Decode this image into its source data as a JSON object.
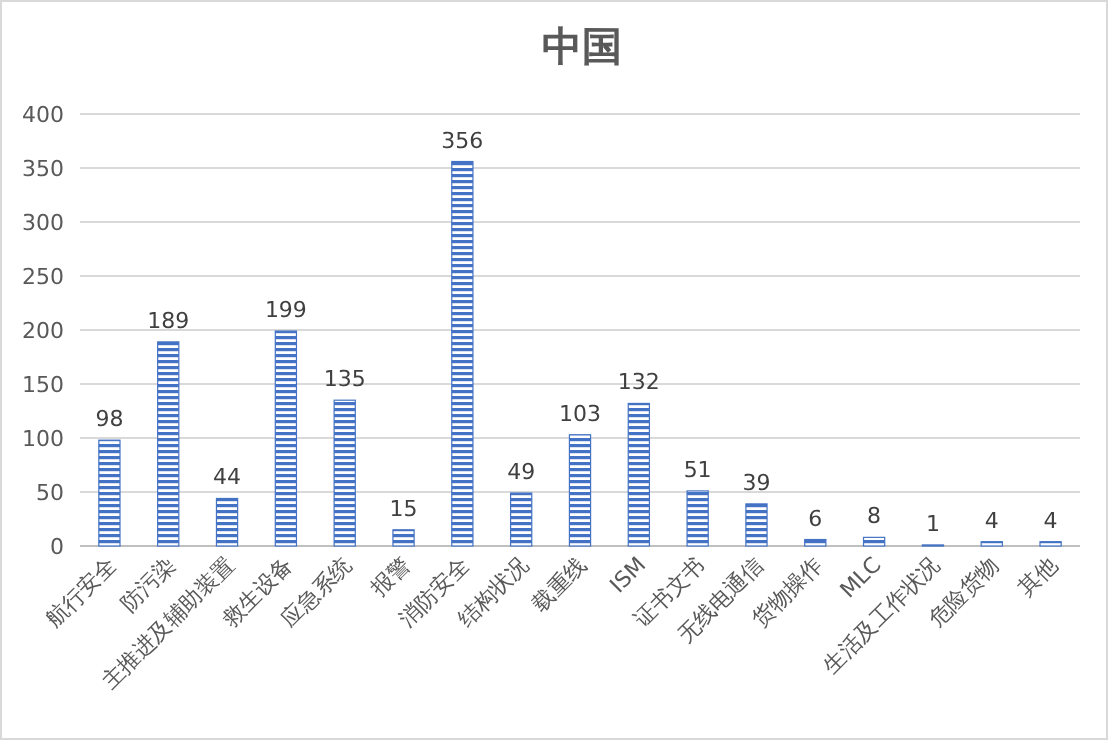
{
  "chart_data": {
    "type": "bar",
    "title": "中国",
    "categories": [
      "航行安全",
      "防污染",
      "主推进及辅助装置",
      "救生设备",
      "应急系统",
      "报警",
      "消防安全",
      "结构状况",
      "载重线",
      "ISM",
      "证书文书",
      "无线电通信",
      "货物操作",
      "MLC",
      "生活及工作状况",
      "危险货物",
      "其他"
    ],
    "values": [
      98,
      189,
      44,
      199,
      135,
      15,
      356,
      49,
      103,
      132,
      51,
      39,
      6,
      8,
      1,
      4,
      4
    ],
    "color": "#4472c4",
    "ylim": [
      0,
      400
    ],
    "yticks": [
      0,
      50,
      100,
      150,
      200,
      250,
      300,
      350,
      400
    ],
    "grid": "y",
    "data_labels": true
  }
}
